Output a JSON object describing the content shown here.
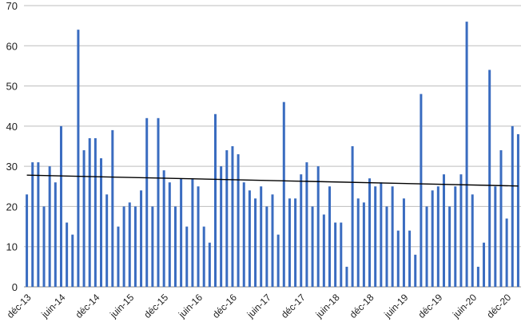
{
  "chart_data": {
    "type": "bar",
    "title": "",
    "xlabel": "",
    "ylabel": "",
    "ylim": [
      0,
      70
    ],
    "yticks": [
      0,
      10,
      20,
      30,
      40,
      50,
      60,
      70
    ],
    "grid": true,
    "legend": "none",
    "bar_color": "#3a6cc0",
    "trendline_color": "#000000",
    "x_tick_labels": [
      {
        "label": "déc-13",
        "index": 0
      },
      {
        "label": "juin-14",
        "index": 6
      },
      {
        "label": "déc-14",
        "index": 12
      },
      {
        "label": "juin-15",
        "index": 18
      },
      {
        "label": "déc-15",
        "index": 24
      },
      {
        "label": "juin-16",
        "index": 30
      },
      {
        "label": "déc-16",
        "index": 36
      },
      {
        "label": "juin-17",
        "index": 42
      },
      {
        "label": "déc-17",
        "index": 48
      },
      {
        "label": "juin-18",
        "index": 54
      },
      {
        "label": "déc-18",
        "index": 60
      },
      {
        "label": "juin-19",
        "index": 66
      },
      {
        "label": "déc-19",
        "index": 72
      },
      {
        "label": "juin-20",
        "index": 78
      },
      {
        "label": "déc-20",
        "index": 84
      }
    ],
    "values": [
      23,
      31,
      31,
      20,
      30,
      26,
      40,
      16,
      13,
      64,
      34,
      37,
      37,
      32,
      23,
      39,
      15,
      20,
      21,
      20,
      24,
      42,
      20,
      42,
      29,
      26,
      20,
      27,
      15,
      27,
      25,
      15,
      11,
      43,
      30,
      34,
      35,
      33,
      26,
      24,
      22,
      25,
      20,
      23,
      13,
      46,
      22,
      22,
      28,
      31,
      20,
      30,
      18,
      25,
      16,
      16,
      5,
      35,
      22,
      21,
      27,
      25,
      26,
      20,
      25,
      14,
      22,
      14,
      8,
      48,
      20,
      24,
      25,
      28,
      20,
      25,
      28,
      66,
      23,
      5,
      11,
      54,
      25,
      34,
      17,
      40,
      38
    ],
    "trendline": {
      "start": 27.8,
      "end": 25.1
    }
  }
}
